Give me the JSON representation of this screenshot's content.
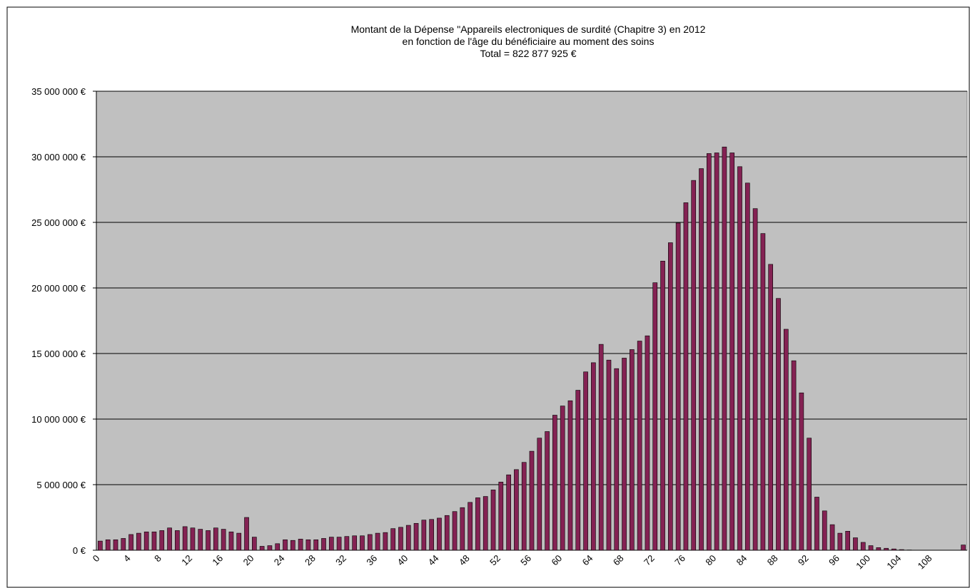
{
  "chart_data": {
    "type": "bar",
    "title": [
      "Montant de la Dépense \"Appareils electroniques de surdité (Chapitre 3)  en 2012",
      "en fonction de l'âge du bénéficiaire au moment des soins",
      "Total = 822 877 925 €"
    ],
    "categories": [
      "0",
      null,
      null,
      null,
      "4",
      null,
      null,
      null,
      "8",
      null,
      null,
      null,
      "12",
      null,
      null,
      null,
      "16",
      null,
      null,
      null,
      "20",
      null,
      null,
      null,
      "24",
      null,
      null,
      null,
      "28",
      null,
      null,
      null,
      "32",
      null,
      null,
      null,
      "36",
      null,
      null,
      null,
      "40",
      null,
      null,
      null,
      "44",
      null,
      null,
      null,
      "48",
      null,
      null,
      null,
      "52",
      null,
      null,
      null,
      "56",
      null,
      null,
      null,
      "60",
      null,
      null,
      null,
      "64",
      null,
      null,
      null,
      "68",
      null,
      null,
      null,
      "72",
      null,
      null,
      null,
      "76",
      null,
      null,
      null,
      "80",
      null,
      null,
      null,
      "84",
      null,
      null,
      null,
      "88",
      null,
      null,
      null,
      "92",
      null,
      null,
      null,
      "96",
      null,
      null,
      null,
      "100",
      null,
      null,
      null,
      "104",
      null,
      null,
      null,
      "108",
      null,
      null,
      null,
      null
    ],
    "values": [
      700000,
      800000,
      800000,
      900000,
      1200000,
      1300000,
      1400000,
      1400000,
      1500000,
      1700000,
      1500000,
      1800000,
      1700000,
      1600000,
      1500000,
      1700000,
      1600000,
      1400000,
      1300000,
      2500000,
      1000000,
      300000,
      350000,
      500000,
      800000,
      750000,
      850000,
      800000,
      800000,
      900000,
      1000000,
      1000000,
      1050000,
      1100000,
      1100000,
      1200000,
      1300000,
      1350000,
      1650000,
      1750000,
      1900000,
      2050000,
      2300000,
      2350000,
      2450000,
      2650000,
      2950000,
      3250000,
      3650000,
      4000000,
      4100000,
      4600000,
      5200000,
      5750000,
      6150000,
      6700000,
      7550000,
      8550000,
      9050000,
      10300000,
      11000000,
      11400000,
      12200000,
      13600000,
      14300000,
      15700000,
      14500000,
      13850000,
      14650000,
      15300000,
      15950000,
      16350000,
      20400000,
      22050000,
      23450000,
      24950000,
      26500000,
      28200000,
      29100000,
      30250000,
      30300000,
      30750000,
      30300000,
      29250000,
      28000000,
      26050000,
      24150000,
      21800000,
      19200000,
      16850000,
      14450000,
      12000000,
      8550000,
      4050000,
      3000000,
      1950000,
      1300000,
      1450000,
      950000,
      600000,
      350000,
      200000,
      150000,
      100000,
      50000,
      20000,
      0,
      0,
      0,
      0,
      0,
      0,
      400000
    ],
    "color": "#842253",
    "ylim": [
      0,
      35000000
    ],
    "yticks": [
      {
        "value": 0,
        "label": "0 €"
      },
      {
        "value": 5000000,
        "label": "5 000 000 €"
      },
      {
        "value": 10000000,
        "label": "10 000 000 €"
      },
      {
        "value": 15000000,
        "label": "15 000 000 €"
      },
      {
        "value": 20000000,
        "label": "20 000 000 €"
      },
      {
        "value": 25000000,
        "label": "25 000 000 €"
      },
      {
        "value": 30000000,
        "label": "30 000 000 €"
      },
      {
        "value": 35000000,
        "label": "35 000 000 €"
      }
    ],
    "grid": true
  }
}
